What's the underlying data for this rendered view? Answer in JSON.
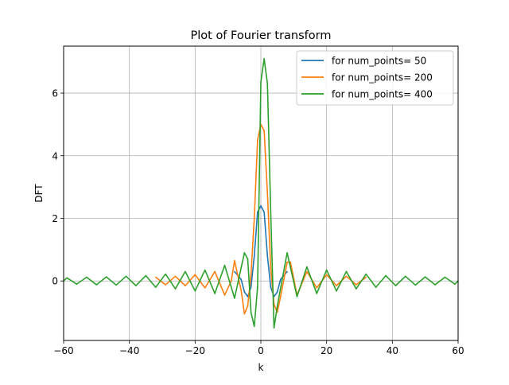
{
  "chart_data": {
    "type": "line",
    "title": "Plot of Fourier transform",
    "xlabel": "k",
    "ylabel": "DFT",
    "xlim": [
      -60,
      60
    ],
    "ylim": [
      -1.9,
      7.5
    ],
    "xticks": [
      -60,
      -40,
      -20,
      0,
      20,
      40,
      60
    ],
    "xtick_labels": [
      "−60",
      "−40",
      "−20",
      "0",
      "20",
      "40",
      "60"
    ],
    "yticks": [
      0,
      2,
      4,
      6
    ],
    "ytick_labels": [
      "0",
      "2",
      "4",
      "6"
    ],
    "grid": true,
    "legend_position": "top-right",
    "series": [
      {
        "name": "for num_points= 50",
        "color": "#1f77b4",
        "x": [
          -8,
          -6,
          -5,
          -4,
          -3,
          -2,
          -1,
          0,
          1,
          2,
          3,
          4,
          5,
          6,
          8
        ],
        "y": [
          0.3,
          0.05,
          -0.35,
          -0.5,
          -0.2,
          0.8,
          2.2,
          2.4,
          2.2,
          0.8,
          -0.2,
          -0.5,
          -0.35,
          0.05,
          0.3
        ]
      },
      {
        "name": "for num_points= 200",
        "color": "#ff7f0e",
        "x": [
          -32,
          -29,
          -26,
          -23,
          -20,
          -17,
          -14,
          -11,
          -9,
          -8,
          -6,
          -5,
          -4,
          -3,
          -2,
          -1,
          0,
          1,
          2,
          3,
          4,
          5,
          6,
          8,
          9,
          11,
          14,
          17,
          20,
          23,
          26,
          29,
          32
        ],
        "y": [
          0.12,
          -0.12,
          0.15,
          -0.15,
          0.2,
          -0.22,
          0.3,
          -0.45,
          0.0,
          0.65,
          -0.3,
          -1.05,
          -0.8,
          0.2,
          2.0,
          4.5,
          5.0,
          4.8,
          2.8,
          0.4,
          -0.75,
          -1.0,
          -0.5,
          0.6,
          0.6,
          -0.45,
          0.3,
          -0.22,
          0.2,
          -0.15,
          0.15,
          -0.12,
          0.12
        ]
      },
      {
        "name": "for num_points= 400",
        "color": "#2ca02c",
        "x": [
          -60,
          -59,
          -56,
          -53,
          -50,
          -47,
          -44,
          -41,
          -38,
          -35,
          -32,
          -29,
          -26,
          -23,
          -20,
          -17,
          -14,
          -11,
          -8,
          -5,
          -4,
          -3,
          -2,
          -1,
          0,
          1,
          2,
          3,
          4,
          5,
          8,
          11,
          14,
          17,
          20,
          23,
          26,
          29,
          32,
          35,
          38,
          41,
          44,
          47,
          50,
          53,
          56,
          59,
          60
        ],
        "y": [
          0.0,
          0.1,
          -0.1,
          0.12,
          -0.12,
          0.13,
          -0.13,
          0.15,
          -0.15,
          0.17,
          -0.2,
          0.22,
          -0.25,
          0.3,
          -0.32,
          0.35,
          -0.4,
          0.5,
          -0.55,
          0.9,
          0.7,
          -1.0,
          -1.45,
          -0.2,
          6.35,
          7.1,
          6.3,
          2.2,
          -1.5,
          -0.8,
          0.9,
          -0.5,
          0.45,
          -0.4,
          0.35,
          -0.32,
          0.3,
          -0.25,
          0.22,
          -0.2,
          0.17,
          -0.15,
          0.15,
          -0.13,
          0.13,
          -0.12,
          0.12,
          -0.1,
          0.0
        ]
      }
    ]
  }
}
